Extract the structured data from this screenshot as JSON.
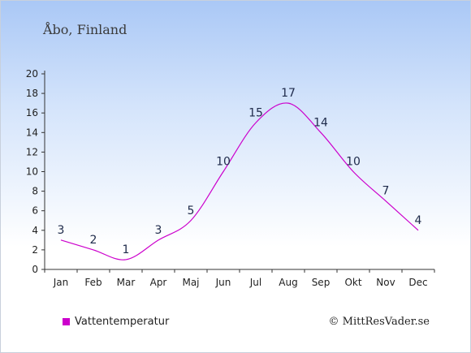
{
  "chart_data": {
    "type": "line",
    "title": "Åbo, Finland",
    "categories": [
      "Jan",
      "Feb",
      "Mar",
      "Apr",
      "Maj",
      "Jun",
      "Jul",
      "Aug",
      "Sep",
      "Okt",
      "Nov",
      "Dec"
    ],
    "series": [
      {
        "name": "Vattentemperatur",
        "values": [
          3,
          2,
          1,
          3,
          5,
          10,
          15,
          17,
          14,
          10,
          7,
          4
        ],
        "color": "#cc00cc"
      }
    ],
    "yticks": [
      "0",
      "2",
      "4",
      "6",
      "8",
      "10",
      "12",
      "14",
      "16",
      "18",
      "20"
    ],
    "ylim": [
      0,
      20
    ],
    "legend_position": "bottom-left",
    "label_color": "#1e2a4a"
  },
  "credit": "© MittResVader.se"
}
